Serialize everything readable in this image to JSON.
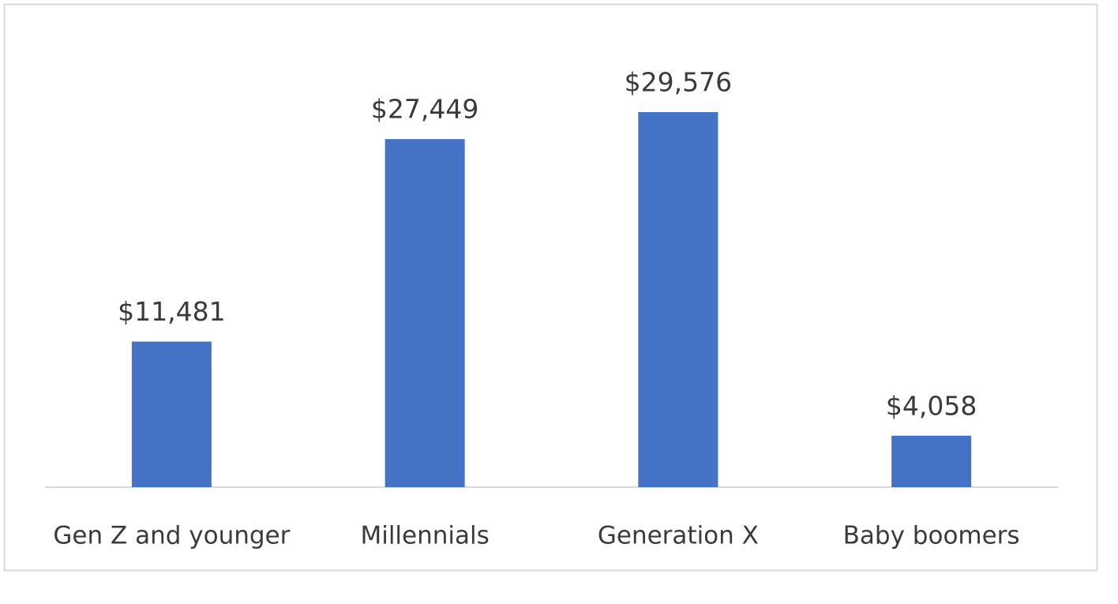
{
  "chart_data": {
    "type": "bar",
    "categories": [
      "Gen Z and younger",
      "Millennials",
      "Generation X",
      "Baby boomers"
    ],
    "values": [
      11481,
      27449,
      29576,
      4058
    ],
    "value_labels": [
      "$11,481",
      "$27,449",
      "$29,576",
      "$4,058"
    ],
    "color": "#4472c4"
  }
}
